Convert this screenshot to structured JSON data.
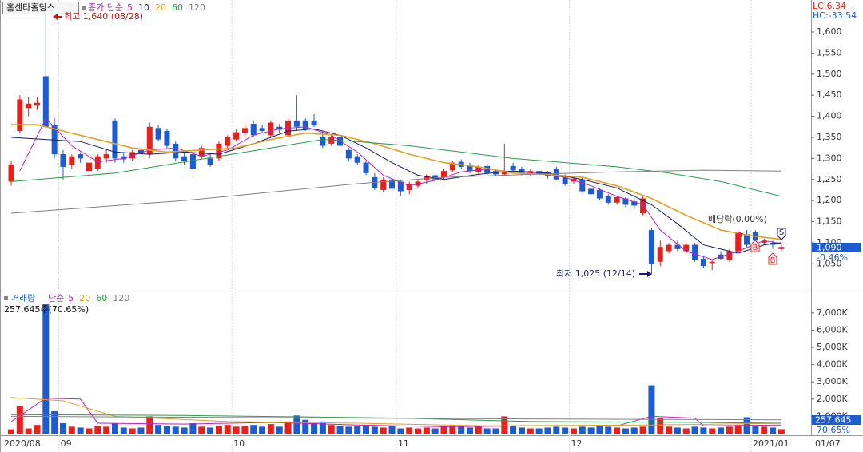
{
  "header": {
    "stock": "홈센타홀딩스",
    "price_ma_label": "종가 단순",
    "volume_label": "거래량",
    "volume_ma_label": "단순",
    "volume_info": "257,645주(70.65%)",
    "lc": "LC:6.34",
    "hc": "HC:-33.54",
    "price_box": "1,090",
    "price_change": "-0.46%",
    "volume_box": "257,645",
    "volume_ratio": "70.65%",
    "current_date": "01/07"
  },
  "annotations": {
    "high": "최고 1,640 (08/28)",
    "low": "최저 1,025 (12/14)",
    "ex_dividend": "배당락(0.00%)",
    "sell": "S",
    "buy1": "B",
    "buy2": "B"
  },
  "chart_data": [
    {
      "type": "candlestick",
      "up_color": "#e8201c",
      "down_color": "#1c5cd0",
      "open": [
        1245,
        1365,
        1420,
        1425,
        1495,
        1380,
        1310,
        1285,
        1310,
        1270,
        1275,
        1300,
        1390,
        1305,
        1300,
        1320,
        1310,
        1372,
        1365,
        1335,
        1305,
        1310,
        1305,
        1300,
        1300,
        1330,
        1345,
        1360,
        1382,
        1372,
        1355,
        1375,
        1355,
        1390,
        1390,
        1390,
        1350,
        1335,
        1350,
        1320,
        1305,
        1290,
        1255,
        1225,
        1250,
        1245,
        1225,
        1235,
        1248,
        1260,
        1255,
        1272,
        1292,
        1285,
        1268,
        1282,
        1270,
        1262,
        1282,
        1275,
        1262,
        1270,
        1268,
        1275,
        1255,
        1245,
        1250,
        1228,
        1225,
        1210,
        1195,
        1205,
        1198,
        1170,
        1130,
        1055,
        1080,
        1095,
        1080,
        1095,
        1062,
        1052,
        1072,
        1060,
        1080,
        1120,
        1125,
        1100,
        1100,
        1085
      ],
      "high": [
        1295,
        1450,
        1445,
        1445,
        1640,
        1395,
        1320,
        1310,
        1315,
        1295,
        1310,
        1320,
        1395,
        1315,
        1320,
        1330,
        1385,
        1380,
        1370,
        1340,
        1315,
        1320,
        1330,
        1310,
        1340,
        1355,
        1370,
        1380,
        1390,
        1380,
        1390,
        1382,
        1395,
        1450,
        1395,
        1405,
        1365,
        1355,
        1352,
        1325,
        1310,
        1295,
        1265,
        1255,
        1255,
        1250,
        1245,
        1250,
        1262,
        1265,
        1275,
        1295,
        1298,
        1290,
        1285,
        1288,
        1275,
        1335,
        1290,
        1280,
        1275,
        1272,
        1270,
        1280,
        1262,
        1255,
        1255,
        1232,
        1230,
        1215,
        1212,
        1208,
        1205,
        1210,
        1135,
        1105,
        1100,
        1105,
        1100,
        1100,
        1070,
        1058,
        1080,
        1085,
        1130,
        1130,
        1130,
        1110,
        1105,
        1100
      ],
      "low": [
        1235,
        1360,
        1400,
        1415,
        1370,
        1300,
        1250,
        1275,
        1290,
        1265,
        1270,
        1290,
        1290,
        1290,
        1295,
        1305,
        1300,
        1340,
        1325,
        1295,
        1285,
        1260,
        1300,
        1280,
        1295,
        1325,
        1340,
        1350,
        1350,
        1360,
        1350,
        1360,
        1350,
        1365,
        1365,
        1375,
        1325,
        1330,
        1325,
        1295,
        1285,
        1260,
        1225,
        1220,
        1225,
        1210,
        1215,
        1230,
        1240,
        1245,
        1250,
        1268,
        1275,
        1265,
        1262,
        1260,
        1260,
        1258,
        1265,
        1260,
        1258,
        1258,
        1252,
        1248,
        1235,
        1240,
        1218,
        1210,
        1200,
        1190,
        1190,
        1185,
        1180,
        1165,
        1025,
        1045,
        1075,
        1080,
        1075,
        1055,
        1040,
        1035,
        1058,
        1055,
        1075,
        1090,
        1100,
        1095,
        1085,
        1080
      ],
      "close": [
        1285,
        1440,
        1430,
        1432,
        1375,
        1310,
        1280,
        1305,
        1300,
        1290,
        1305,
        1310,
        1300,
        1298,
        1315,
        1312,
        1375,
        1345,
        1330,
        1300,
        1295,
        1275,
        1325,
        1285,
        1335,
        1350,
        1362,
        1372,
        1355,
        1365,
        1385,
        1368,
        1390,
        1375,
        1370,
        1378,
        1330,
        1350,
        1330,
        1300,
        1290,
        1265,
        1230,
        1250,
        1228,
        1222,
        1240,
        1245,
        1258,
        1250,
        1270,
        1290,
        1280,
        1270,
        1280,
        1265,
        1262,
        1270,
        1272,
        1265,
        1270,
        1262,
        1258,
        1250,
        1240,
        1252,
        1222,
        1215,
        1205,
        1195,
        1208,
        1190,
        1188,
        1205,
        1050,
        1090,
        1095,
        1085,
        1095,
        1060,
        1045,
        1055,
        1062,
        1080,
        1125,
        1095,
        1105,
        1105,
        1095,
        1090
      ],
      "series": [
        {
          "name": "5",
          "color": "#c020c0",
          "x": [
            1,
            4,
            7,
            10,
            13,
            16,
            19,
            22,
            25,
            28,
            31,
            34,
            37,
            40,
            43,
            46,
            49,
            52,
            55,
            58,
            61,
            64,
            67,
            70,
            73,
            75,
            78,
            81,
            84,
            87,
            89
          ],
          "values": [
            1270,
            1395,
            1330,
            1292,
            1300,
            1320,
            1325,
            1305,
            1320,
            1355,
            1370,
            1375,
            1355,
            1315,
            1260,
            1235,
            1248,
            1268,
            1275,
            1268,
            1266,
            1255,
            1235,
            1210,
            1190,
            1130,
            1080,
            1060,
            1080,
            1105,
            1098
          ]
        },
        {
          "name": "10",
          "color": "#1c1c6c",
          "x": [
            0,
            4,
            8,
            12,
            16,
            20,
            24,
            28,
            32,
            35,
            38,
            41,
            44,
            47,
            50,
            54,
            58,
            62,
            66,
            70,
            74,
            77,
            80,
            84,
            87,
            89
          ],
          "values": [
            1350,
            1345,
            1340,
            1315,
            1310,
            1315,
            1310,
            1335,
            1365,
            1370,
            1355,
            1325,
            1290,
            1260,
            1250,
            1262,
            1270,
            1265,
            1250,
            1230,
            1190,
            1145,
            1095,
            1075,
            1095,
            1100
          ]
        },
        {
          "name": "20",
          "color": "#e0a020",
          "x": [
            0,
            3,
            6,
            10,
            14,
            18,
            22,
            26,
            30,
            34,
            38,
            42,
            46,
            50,
            54,
            58,
            62,
            66,
            70,
            74,
            78,
            82,
            86,
            89
          ],
          "values": [
            1380,
            1380,
            1365,
            1345,
            1325,
            1315,
            1320,
            1325,
            1345,
            1360,
            1355,
            1335,
            1310,
            1290,
            1280,
            1265,
            1262,
            1255,
            1235,
            1205,
            1165,
            1130,
            1115,
            1108
          ]
        },
        {
          "name": "60",
          "color": "#2a9a48",
          "x": [
            0,
            6,
            12,
            18,
            24,
            30,
            36,
            40,
            46,
            52,
            58,
            64,
            70,
            76,
            82,
            89
          ],
          "values": [
            1245,
            1255,
            1265,
            1285,
            1305,
            1325,
            1345,
            1340,
            1330,
            1315,
            1300,
            1290,
            1280,
            1265,
            1245,
            1210
          ]
        },
        {
          "name": "120",
          "color": "#808080",
          "x": [
            0,
            10,
            20,
            30,
            40,
            50,
            60,
            70,
            80,
            89
          ],
          "values": [
            1170,
            1185,
            1200,
            1220,
            1240,
            1255,
            1262,
            1268,
            1272,
            1270
          ]
        }
      ],
      "ylim": [
        990,
        1672
      ],
      "yticks": [
        {
          "value": 1050,
          "label": "1,050"
        },
        {
          "value": 1100,
          "label": "1,100"
        },
        {
          "value": 1150,
          "label": "1,150"
        },
        {
          "value": 1200,
          "label": "1,200"
        },
        {
          "value": 1250,
          "label": "1,250"
        },
        {
          "value": 1300,
          "label": "1,300"
        },
        {
          "value": 1350,
          "label": "1,350"
        },
        {
          "value": 1400,
          "label": "1,400"
        },
        {
          "value": 1450,
          "label": "1,450"
        },
        {
          "value": 1500,
          "label": "1,500"
        },
        {
          "value": 1550,
          "label": "1,550"
        },
        {
          "value": 1600,
          "label": "1,600"
        }
      ]
    },
    {
      "type": "bar",
      "categories": [
        "2020/08",
        null,
        null,
        null,
        null,
        null,
        "09",
        null,
        null,
        null,
        null,
        null,
        null,
        null,
        null,
        null,
        null,
        null,
        null,
        null,
        null,
        null,
        null,
        null,
        null,
        null,
        "10",
        null,
        null,
        null,
        null,
        null,
        null,
        null,
        null,
        null,
        null,
        null,
        null,
        null,
        null,
        null,
        null,
        null,
        null,
        "11",
        null,
        null,
        null,
        null,
        null,
        null,
        null,
        null,
        null,
        null,
        null,
        null,
        null,
        null,
        null,
        null,
        null,
        null,
        null,
        "12",
        null,
        null,
        null,
        null,
        null,
        null,
        null,
        null,
        null,
        null,
        null,
        null,
        null,
        null,
        null,
        null,
        null,
        null,
        null,
        null,
        "2021/01",
        null,
        null,
        null
      ],
      "values": [
        250,
        1600,
        300,
        500,
        7500,
        1300,
        600,
        400,
        350,
        300,
        450,
        400,
        600,
        350,
        300,
        350,
        1000,
        500,
        450,
        400,
        350,
        600,
        400,
        350,
        450,
        500,
        400,
        450,
        500,
        400,
        550,
        400,
        700,
        1050,
        800,
        600,
        700,
        500,
        450,
        400,
        450,
        500,
        400,
        350,
        450,
        300,
        350,
        300,
        350,
        300,
        400,
        500,
        450,
        350,
        400,
        300,
        300,
        1000,
        450,
        350,
        300,
        300,
        350,
        400,
        350,
        300,
        400,
        350,
        450,
        400,
        350,
        300,
        350,
        400,
        2800,
        900,
        400,
        350,
        300,
        400,
        350,
        300,
        350,
        400,
        500,
        950,
        450,
        400,
        350,
        257.645
      ],
      "series": [
        {
          "name": "5",
          "color": "#c020c0",
          "x": [
            0,
            4,
            8,
            10,
            20,
            30,
            40,
            50,
            60,
            70,
            74,
            79,
            80,
            89
          ],
          "values": [
            700,
            2050,
            2000,
            600,
            550,
            650,
            500,
            400,
            450,
            450,
            1000,
            900,
            450,
            500
          ]
        },
        {
          "name": "20",
          "color": "#e0a020",
          "x": [
            0,
            6,
            12,
            25,
            40,
            55,
            74,
            89
          ],
          "values": [
            2100,
            1900,
            1000,
            700,
            600,
            450,
            500,
            600
          ]
        },
        {
          "name": "60",
          "color": "#2a9a48",
          "x": [
            0,
            20,
            45,
            60,
            80,
            89
          ],
          "values": [
            1100,
            1050,
            900,
            700,
            650,
            600
          ]
        },
        {
          "name": "120",
          "color": "#808080",
          "x": [
            0,
            40,
            60,
            89
          ],
          "values": [
            1000,
            900,
            850,
            800
          ]
        }
      ],
      "ylim": [
        0,
        8150
      ],
      "yticks": [
        {
          "value": 1000,
          "label": "1,000K"
        },
        {
          "value": 2000,
          "label": "2,000K"
        },
        {
          "value": 3000,
          "label": "3,000K"
        },
        {
          "value": 4000,
          "label": "4,000K"
        },
        {
          "value": 5000,
          "label": "5,000K"
        },
        {
          "value": 6000,
          "label": "6,000K"
        },
        {
          "value": 7000,
          "label": "7,000K"
        }
      ]
    }
  ]
}
